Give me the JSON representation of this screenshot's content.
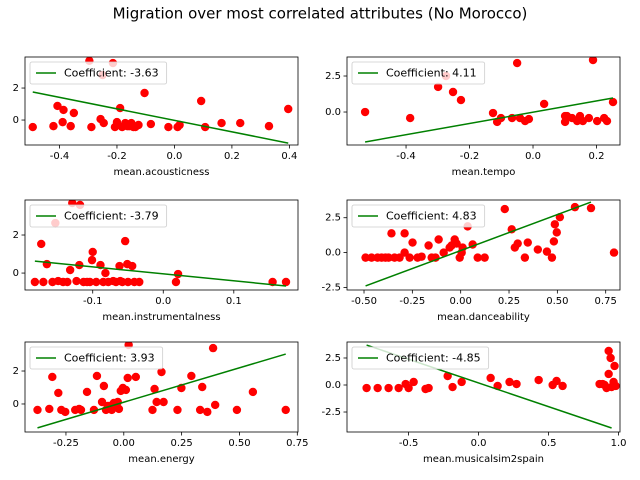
{
  "title": "Migration over most correlated attributes (No Morocco)",
  "chart_data": [
    {
      "type": "scatter",
      "xlabel": "mean.acousticness",
      "xlim": [
        -0.52,
        0.43
      ],
      "xticks": [
        -0.4,
        -0.2,
        {
          "value": 0.0,
          "label": "0.0"
        },
        0.2,
        0.4
      ],
      "ylim": [
        -1.56,
        3.94
      ],
      "yticks": [
        0,
        2
      ],
      "legend": "upper left",
      "series": [
        {
          "color": "#ff0000",
          "x": [
            -0.493,
            -0.421,
            -0.407,
            -0.386,
            -0.389,
            -0.361,
            -0.35,
            -0.296,
            -0.289,
            -0.257,
            -0.25,
            -0.246,
            -0.214,
            -0.207,
            -0.2,
            -0.189,
            -0.182,
            -0.171,
            -0.164,
            -0.157,
            -0.15,
            -0.143,
            -0.136,
            -0.125,
            -0.104,
            -0.082,
            -0.021,
            0.011,
            0.018,
            0.093,
            0.107,
            0.164,
            0.229,
            0.329,
            0.396
          ],
          "values": [
            -0.44,
            -0.38,
            0.88,
            0.63,
            -0.13,
            -0.38,
            0.44,
            3.7,
            -0.44,
            0.06,
            2.81,
            -0.19,
            3.56,
            -0.44,
            -0.13,
            0.75,
            -0.44,
            -0.19,
            -0.38,
            -0.38,
            -0.19,
            -0.44,
            -0.44,
            -0.31,
            1.69,
            -0.25,
            -0.44,
            -0.44,
            -0.31,
            1.19,
            -0.44,
            -0.19,
            -0.19,
            -0.38,
            0.69
          ]
        },
        {
          "name": "Coefficient: -3.63",
          "type": "line",
          "color": "#008000",
          "x": [
            -0.493,
            0.396
          ],
          "values": [
            1.75,
            -1.44
          ]
        }
      ]
    },
    {
      "type": "scatter",
      "xlabel": "mean.tempo",
      "xlim": [
        -0.586,
        0.274
      ],
      "xticks": [
        -0.4,
        -0.2,
        {
          "value": 0.0,
          "label": "0.0"
        },
        0.2
      ],
      "ylim": [
        -2.29,
        3.82
      ],
      "yticks": [
        {
          "value": 0.0,
          "label": "0.0"
        },
        2.5
      ],
      "legend": "upper left",
      "series": [
        {
          "color": "#ff0000",
          "x": [
            -0.529,
            -0.387,
            -0.299,
            -0.274,
            -0.252,
            -0.227,
            -0.126,
            -0.113,
            -0.101,
            -0.066,
            -0.041,
            -0.025,
            -0.013,
            0.035,
            -0.05,
            0.101,
            0.101,
            0.107,
            0.123,
            0.139,
            0.148,
            0.157,
            0.176,
            0.189,
            0.202,
            0.224,
            0.233,
            0.252
          ],
          "values": [
            0,
            -0.42,
            1.74,
            2.5,
            1.39,
            0.83,
            -0.07,
            -0.69,
            -0.42,
            -0.42,
            -0.42,
            -0.63,
            -0.49,
            0.56,
            3.4,
            -0.28,
            -0.69,
            -0.28,
            -0.42,
            -0.63,
            -0.28,
            -0.63,
            -0.42,
            3.61,
            -0.63,
            -0.42,
            -0.63,
            0.69
          ]
        },
        {
          "name": "Coefficient: 4.11",
          "type": "line",
          "color": "#008000",
          "x": [
            -0.529,
            0.252
          ],
          "values": [
            -2.08,
            0.97
          ]
        }
      ]
    },
    {
      "type": "scatter",
      "xlabel": "mean.instrumentalness",
      "xlim": [
        -0.196,
        0.191
      ],
      "xticks": [
        -0.1,
        {
          "value": 0.0,
          "label": "0.0"
        },
        0.1
      ],
      "ylim": [
        -0.89,
        3.84
      ],
      "yticks": [
        0,
        2
      ],
      "legend": "upper left",
      "series": [
        {
          "color": "#ff0000",
          "x": [
            -0.182,
            -0.173,
            -0.17,
            -0.165,
            -0.157,
            -0.153,
            -0.149,
            -0.142,
            -0.136,
            -0.132,
            -0.129,
            -0.123,
            -0.119,
            -0.118,
            -0.113,
            -0.108,
            -0.104,
            -0.101,
            -0.1,
            -0.095,
            -0.089,
            -0.085,
            -0.082,
            -0.078,
            -0.071,
            -0.067,
            -0.062,
            -0.061,
            -0.058,
            -0.054,
            -0.051,
            -0.05,
            -0.044,
            -0.041,
            -0.034,
            0.018,
            0.021,
            0.155,
            0.174
          ],
          "values": [
            -0.47,
            1.53,
            -0.47,
            0.47,
            -0.47,
            2.63,
            -0.42,
            -0.47,
            -0.47,
            0.16,
            3.68,
            -0.42,
            0.42,
            3.58,
            -0.47,
            -0.47,
            -0.47,
            0.68,
            1.11,
            -0.47,
            0.42,
            -0.47,
            0,
            -0.47,
            -0.42,
            -0.47,
            0.37,
            -0.42,
            -0.47,
            1.68,
            0.47,
            -0.47,
            0.37,
            -0.47,
            -0.47,
            -0.47,
            -0.05,
            -0.47,
            -0.47
          ]
        },
        {
          "name": "Coefficient: -3.79",
          "type": "line",
          "color": "#008000",
          "x": [
            -0.182,
            0.174
          ],
          "values": [
            0.63,
            -0.68
          ]
        }
      ]
    },
    {
      "type": "scatter",
      "xlabel": "mean.danceability",
      "xlim": [
        -0.588,
        0.824
      ],
      "xticks": [
        {
          "value": -0.5,
          "label": "-0.50"
        },
        -0.25,
        {
          "value": 0.0,
          "label": "0.00"
        },
        0.25,
        {
          "value": 0.5,
          "label": "0.50"
        },
        0.75
      ],
      "ylim": [
        -2.68,
        3.77
      ],
      "yticks": [
        -2.5,
        {
          "value": 0.0,
          "label": "0.0"
        },
        2.5
      ],
      "legend": "upper left",
      "series": [
        {
          "color": "#ff0000",
          "x": [
            -0.492,
            -0.461,
            -0.43,
            -0.409,
            -0.389,
            -0.373,
            -0.358,
            -0.342,
            -0.316,
            -0.29,
            -0.29,
            -0.264,
            -0.249,
            -0.223,
            -0.202,
            -0.166,
            -0.15,
            -0.13,
            -0.114,
            -0.088,
            -0.057,
            -0.047,
            -0.031,
            -0.021,
            -0.005,
            0.005,
            0.01,
            0.036,
            0.062,
            0.088,
            0.124,
            0.228,
            0.264,
            0.28,
            0.295,
            0.332,
            0.347,
            0.399,
            0.446,
            0.472,
            0.482,
            0.487,
            0.497,
            0.513,
            0.591,
            0.674,
            0.793
          ],
          "values": [
            -0.36,
            -0.36,
            -0.36,
            -0.36,
            -0.36,
            -0.36,
            1.38,
            -0.36,
            -0.36,
            0,
            1.38,
            -0.36,
            0.72,
            -0.36,
            -0.29,
            0.51,
            -0.36,
            -0.36,
            0.94,
            0,
            0.36,
            0.51,
            0.94,
            0.65,
            -0.36,
            0,
            0.36,
            1.88,
            0.58,
            -0.36,
            -0.36,
            3.12,
            1.67,
            0.36,
            0.65,
            -0.36,
            0.72,
            0.22,
            0.07,
            -0.36,
            0.8,
            2.03,
            1.45,
            2.54,
            3.26,
            3.19,
            0
          ]
        },
        {
          "name": "Coefficient: 4.83",
          "type": "line",
          "color": "#008000",
          "x": [
            -0.492,
            0.674
          ],
          "values": [
            -2.39,
            3.62
          ]
        }
      ]
    },
    {
      "type": "scatter",
      "xlabel": "mean.energy",
      "xlim": [
        -0.427,
        0.753
      ],
      "xticks": [
        -0.25,
        {
          "value": 0.0,
          "label": "0.00"
        },
        0.25,
        {
          "value": 0.5,
          "label": "0.50"
        },
        0.75
      ],
      "ylim": [
        -1.7,
        3.76
      ],
      "yticks": [
        0,
        2
      ],
      "legend": "upper left",
      "series": [
        {
          "color": "#ff0000",
          "x": [
            -0.373,
            -0.322,
            -0.309,
            -0.283,
            -0.27,
            -0.253,
            -0.21,
            -0.193,
            -0.185,
            -0.159,
            -0.129,
            -0.116,
            -0.094,
            -0.086,
            -0.077,
            -0.069,
            -0.06,
            -0.052,
            -0.043,
            -0.034,
            -0.026,
            -0.021,
            -0.013,
            -0.004,
            0.009,
            0.017,
            0.021,
            0.052,
            0.124,
            0.133,
            0.142,
            0.163,
            0.172,
            0.232,
            0.249,
            0.292,
            0.33,
            0.339,
            0.361,
            0.386,
            0.395,
            0.489,
            0.558,
            0.7
          ],
          "values": [
            -0.36,
            -0.3,
            1.64,
            0.67,
            -0.36,
            -0.48,
            -0.36,
            -0.3,
            -0.36,
            0.73,
            -0.36,
            1.7,
            0.12,
            1.09,
            -0.36,
            -0.12,
            -0.12,
            -0.36,
            0.06,
            -0.18,
            0.12,
            -0.3,
            0.79,
            0.97,
            0.85,
            1.58,
            3.58,
            1.64,
            -0.36,
            0.91,
            0.12,
            1.94,
            0.12,
            -0.36,
            0.97,
            1.7,
            -0.36,
            1.03,
            -0.48,
            3.39,
            -0.06,
            -0.36,
            0.73,
            -0.36
          ]
        },
        {
          "name": "Coefficient: 3.93",
          "type": "line",
          "color": "#008000",
          "x": [
            -0.373,
            0.7
          ],
          "values": [
            -1.45,
            3.03
          ]
        }
      ]
    },
    {
      "type": "scatter",
      "xlabel": "mean.musicalsim2spain",
      "xlim": [
        -0.94,
        1.01
      ],
      "xticks": [
        -0.5,
        {
          "value": 0.0,
          "label": "0.0"
        },
        0.5,
        {
          "value": 1.0,
          "label": "1.0"
        }
      ],
      "ylim": [
        -4.35,
        3.98
      ],
      "yticks": [
        -2.5,
        {
          "value": 0.0,
          "label": "0.0"
        },
        2.5
      ],
      "legend": "upper left",
      "series": [
        {
          "color": "#ff0000",
          "x": [
            -0.8,
            -0.721,
            -0.643,
            -0.571,
            -0.521,
            -0.5,
            -0.464,
            -0.379,
            -0.357,
            -0.221,
            -0.186,
            -0.121,
            0.086,
            0.136,
            0.221,
            0.271,
            0.429,
            0.529,
            0.557,
            0.6,
            0.864,
            0.886,
            0.9,
            0.914,
            0.929,
            0.929,
            0.943,
            0.95,
            0.964,
            0.971,
            0.979
          ],
          "values": [
            -0.28,
            -0.28,
            -0.28,
            -0.28,
            0.09,
            -0.28,
            0.28,
            -0.37,
            -0.28,
            0.83,
            -0.19,
            0.28,
            0.65,
            -0.09,
            0.28,
            0.09,
            0.46,
            0,
            0.37,
            -0.09,
            0.09,
            0.09,
            0,
            -0.28,
            1.02,
            3.15,
            2.5,
            -0.19,
            0.28,
            1.76,
            -0.09
          ]
        },
        {
          "name": "Coefficient: -4.85",
          "type": "line",
          "color": "#008000",
          "x": [
            -0.8,
            0.95
          ],
          "values": [
            3.7,
            -3.98
          ]
        }
      ]
    }
  ]
}
